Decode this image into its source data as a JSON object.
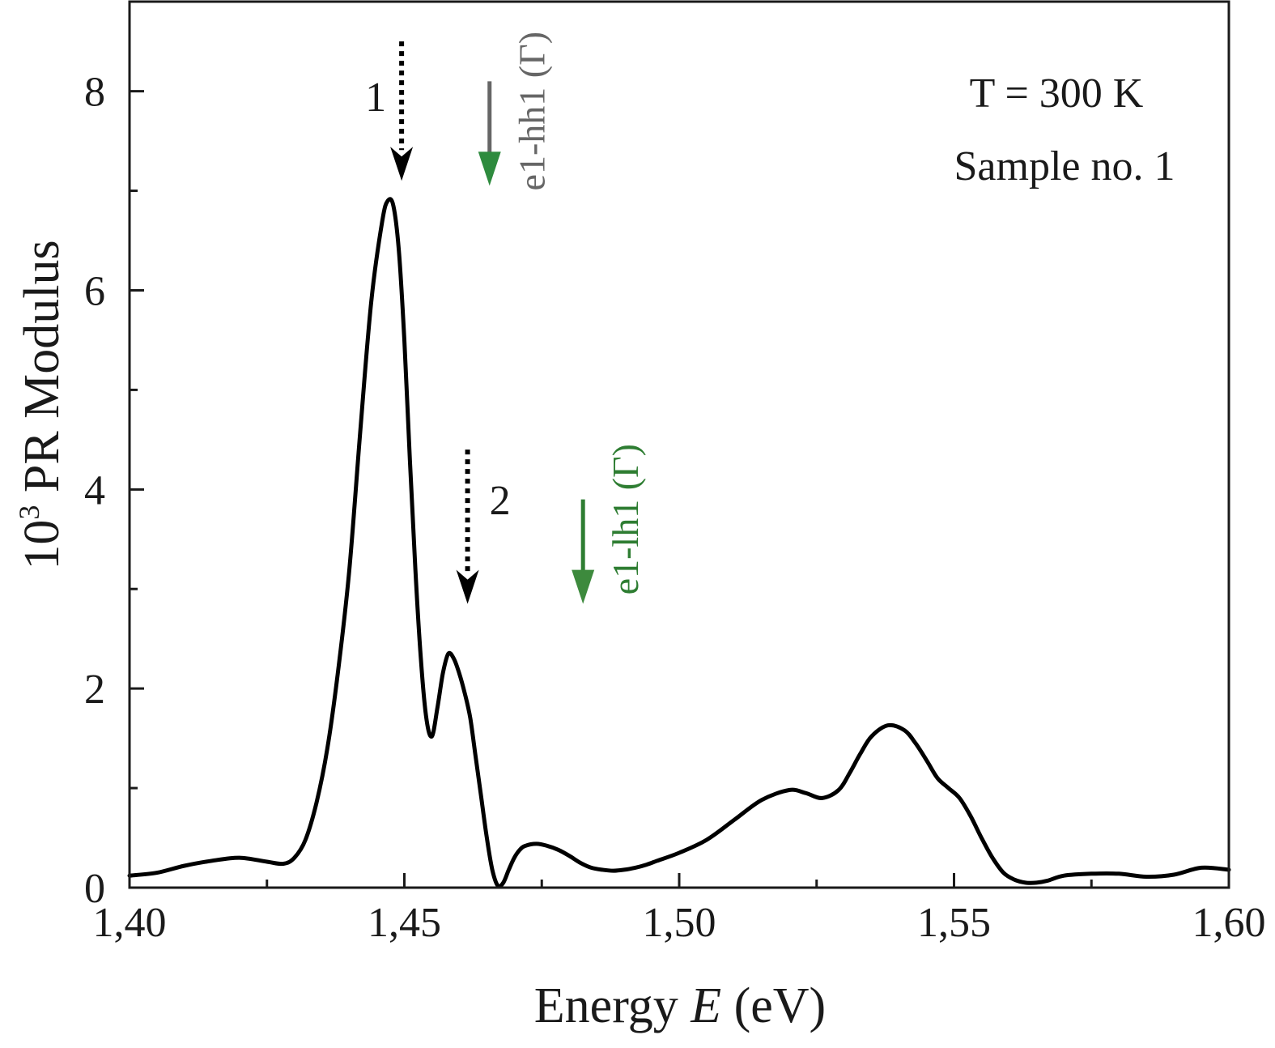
{
  "chart_data": {
    "type": "line",
    "title": "",
    "xlabel_prefix": "Energy ",
    "xlabel_var": "E",
    "xlabel_suffix": " (eV)",
    "ylabel_base": "10",
    "ylabel_exp": "3",
    "ylabel_rest": " PR Modulus",
    "xlim": [
      1.4,
      1.6
    ],
    "ylim": [
      0,
      8.9
    ],
    "xticks": [
      1.4,
      1.45,
      1.5,
      1.55,
      1.6
    ],
    "xtick_labels": [
      "1,40",
      "1,45",
      "1,50",
      "1,55",
      "1,60"
    ],
    "x_minor": [
      1.425,
      1.475,
      1.525,
      1.575
    ],
    "yticks": [
      0,
      2,
      4,
      6,
      8
    ],
    "ytick_labels": [
      "0",
      "2",
      "4",
      "6",
      "8"
    ],
    "y_minor": [
      1,
      3,
      5,
      7
    ],
    "grid": false,
    "series": [
      {
        "name": "PR Modulus",
        "color": "#000000",
        "x": [
          1.4,
          1.405,
          1.41,
          1.415,
          1.42,
          1.425,
          1.428,
          1.43,
          1.432,
          1.434,
          1.436,
          1.438,
          1.44,
          1.442,
          1.444,
          1.446,
          1.447,
          1.448,
          1.449,
          1.45,
          1.451,
          1.452,
          1.453,
          1.454,
          1.455,
          1.456,
          1.457,
          1.458,
          1.459,
          1.46,
          1.461,
          1.462,
          1.463,
          1.464,
          1.465,
          1.466,
          1.467,
          1.468,
          1.469,
          1.47,
          1.471,
          1.472,
          1.474,
          1.476,
          1.478,
          1.48,
          1.482,
          1.484,
          1.486,
          1.488,
          1.49,
          1.492,
          1.494,
          1.496,
          1.5,
          1.505,
          1.51,
          1.515,
          1.52,
          1.523,
          1.526,
          1.529,
          1.531,
          1.533,
          1.535,
          1.538,
          1.541,
          1.543,
          1.545,
          1.547,
          1.549,
          1.551,
          1.553,
          1.555,
          1.557,
          1.559,
          1.561,
          1.563,
          1.565,
          1.567,
          1.57,
          1.575,
          1.58,
          1.585,
          1.59,
          1.595,
          1.6
        ],
        "values": [
          0.12,
          0.15,
          0.22,
          0.27,
          0.3,
          0.26,
          0.24,
          0.3,
          0.48,
          0.85,
          1.4,
          2.2,
          3.2,
          4.6,
          5.9,
          6.7,
          6.9,
          6.85,
          6.4,
          5.5,
          4.3,
          3.2,
          2.3,
          1.7,
          1.52,
          1.8,
          2.15,
          2.35,
          2.3,
          2.15,
          1.95,
          1.7,
          1.3,
          0.9,
          0.5,
          0.18,
          0.02,
          0.05,
          0.18,
          0.3,
          0.38,
          0.42,
          0.44,
          0.42,
          0.38,
          0.32,
          0.25,
          0.2,
          0.18,
          0.17,
          0.18,
          0.2,
          0.23,
          0.27,
          0.35,
          0.48,
          0.68,
          0.88,
          0.98,
          0.95,
          0.9,
          0.98,
          1.15,
          1.35,
          1.52,
          1.63,
          1.58,
          1.45,
          1.28,
          1.1,
          1.0,
          0.9,
          0.72,
          0.5,
          0.3,
          0.15,
          0.08,
          0.05,
          0.05,
          0.07,
          0.12,
          0.14,
          0.14,
          0.11,
          0.13,
          0.2,
          0.18
        ]
      }
    ],
    "annotations": [
      {
        "label": "1",
        "kind": "dotted-arrow",
        "x": 1.4495,
        "y_from": 8.5,
        "y_to": 7.1,
        "color": "#000000"
      },
      {
        "label": "2",
        "kind": "dotted-arrow",
        "x": 1.4615,
        "y_from": 4.4,
        "y_to": 2.85,
        "color": "#000000"
      },
      {
        "label": "e1-hh1 (Γ)",
        "kind": "solid-arrow",
        "x": 1.4655,
        "y_from": 8.1,
        "y_to": 7.05,
        "color": "#666666",
        "head_color": "#2e8b3e"
      },
      {
        "label": "e1-lh1 (Γ)",
        "kind": "solid-arrow",
        "x": 1.4825,
        "y_from": 3.9,
        "y_to": 2.85,
        "color": "#2e7d32",
        "head_color": "#3d8a3d"
      }
    ],
    "legend_text": [
      "T = 300 K",
      "Sample no. 1"
    ]
  }
}
